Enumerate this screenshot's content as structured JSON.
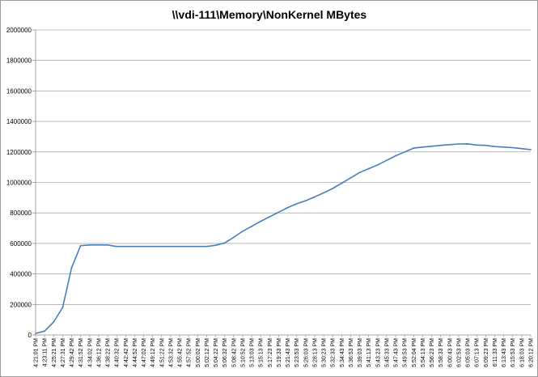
{
  "chart_data": {
    "type": "line",
    "title": "\\\\vdi-111\\Memory\\NonKernel MBytes",
    "xlabel": "",
    "ylabel": "",
    "ylim": [
      0,
      2000000
    ],
    "yticks": [
      "0",
      "200000",
      "400000",
      "600000",
      "800000",
      "1000000",
      "1200000",
      "1400000",
      "1600000",
      "1800000",
      "2000000"
    ],
    "grid": "horizontal",
    "legend": "none",
    "series_color": "#4a7ebb",
    "categories": [
      "4:21:01 PM",
      "4:23:11 PM",
      "4:25:21 PM",
      "4:27:31 PM",
      "4:29:42 PM",
      "4:31:52 PM",
      "4:34:02 PM",
      "4:36:12 PM",
      "4:38:22 PM",
      "4:40:32 PM",
      "4:42:42 PM",
      "4:44:52 PM",
      "4:47:02 PM",
      "4:49:12 PM",
      "4:51:22 PM",
      "4:53:32 PM",
      "4:55:42 PM",
      "4:57:52 PM",
      "5:00:02 PM",
      "5:02:12 PM",
      "5:04:22 PM",
      "5:06:32 PM",
      "5:08:42 PM",
      "5:10:52 PM",
      "5:13:03 PM",
      "5:15:13 PM",
      "5:17:23 PM",
      "5:19:33 PM",
      "5:21:43 PM",
      "5:23:53 PM",
      "5:26:03 PM",
      "5:28:13 PM",
      "5:30:23 PM",
      "5:32:33 PM",
      "5:34:43 PM",
      "5:36:53 PM",
      "5:39:03 PM",
      "5:41:13 PM",
      "5:43:23 PM",
      "5:45:33 PM",
      "5:47:43 PM",
      "5:49:53 PM",
      "5:52:04 PM",
      "5:54:13 PM",
      "5:56:23 PM",
      "5:58:33 PM",
      "6:00:43 PM",
      "6:02:53 PM",
      "6:05:03 PM",
      "6:07:13 PM",
      "6:09:23 PM",
      "6:11:33 PM",
      "6:13:43 PM",
      "6:15:53 PM",
      "6:18:03 PM",
      "6:20:12 PM"
    ],
    "series": [
      {
        "values": [
          10000,
          25000,
          85000,
          180000,
          440000,
          585000,
          590000,
          590000,
          590000,
          580000,
          580000,
          580000,
          580000,
          580000,
          580000,
          580000,
          580000,
          580000,
          580000,
          580000,
          588000,
          603000,
          640000,
          680000,
          712000,
          745000,
          775000,
          805000,
          835000,
          860000,
          880000,
          905000,
          932000,
          960000,
          995000,
          1030000,
          1065000,
          1090000,
          1115000,
          1145000,
          1175000,
          1200000,
          1225000,
          1232000,
          1237000,
          1243000,
          1248000,
          1252000,
          1253000,
          1245000,
          1243000,
          1235000,
          1232000,
          1228000,
          1222000,
          1215000
        ]
      }
    ]
  }
}
